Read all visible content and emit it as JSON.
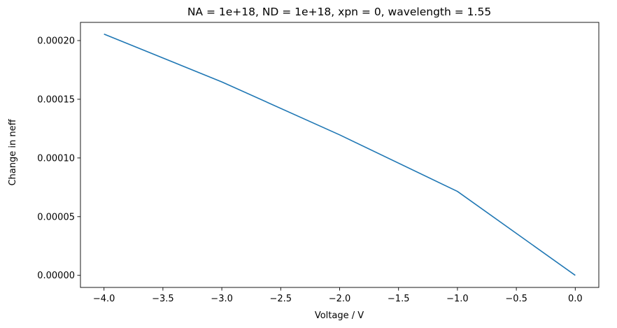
{
  "chart_data": {
    "type": "line",
    "title": "NA = 1e+18, ND = 1e+18, xpn = 0, wavelength = 1.55",
    "xlabel": "Voltage / V",
    "ylabel": "Change in neff",
    "xlim": [
      -4.2,
      0.2
    ],
    "ylim": [
      -1.03e-05,
      0.0002155
    ],
    "grid": false,
    "x_ticks": [
      -4.0,
      -3.5,
      -3.0,
      -2.5,
      -2.0,
      -1.5,
      -1.0,
      -0.5,
      0.0
    ],
    "x_tick_labels": [
      "−4.0",
      "−3.5",
      "−3.0",
      "−2.5",
      "−2.0",
      "−1.5",
      "−1.0",
      "−0.5",
      "0.0"
    ],
    "y_ticks": [
      0.0,
      5e-05,
      0.0001,
      0.00015,
      0.0002
    ],
    "y_tick_labels": [
      "0.00000",
      "0.00005",
      "0.00010",
      "0.00015",
      "0.00020"
    ],
    "series": [
      {
        "color": "#1f77b4",
        "x": [
          -4.0,
          -3.0,
          -2.0,
          -1.0,
          0.0
        ],
        "y": [
          0.0002055,
          0.0001648,
          0.0001197,
          7.15e-05,
          0.0
        ]
      }
    ]
  }
}
